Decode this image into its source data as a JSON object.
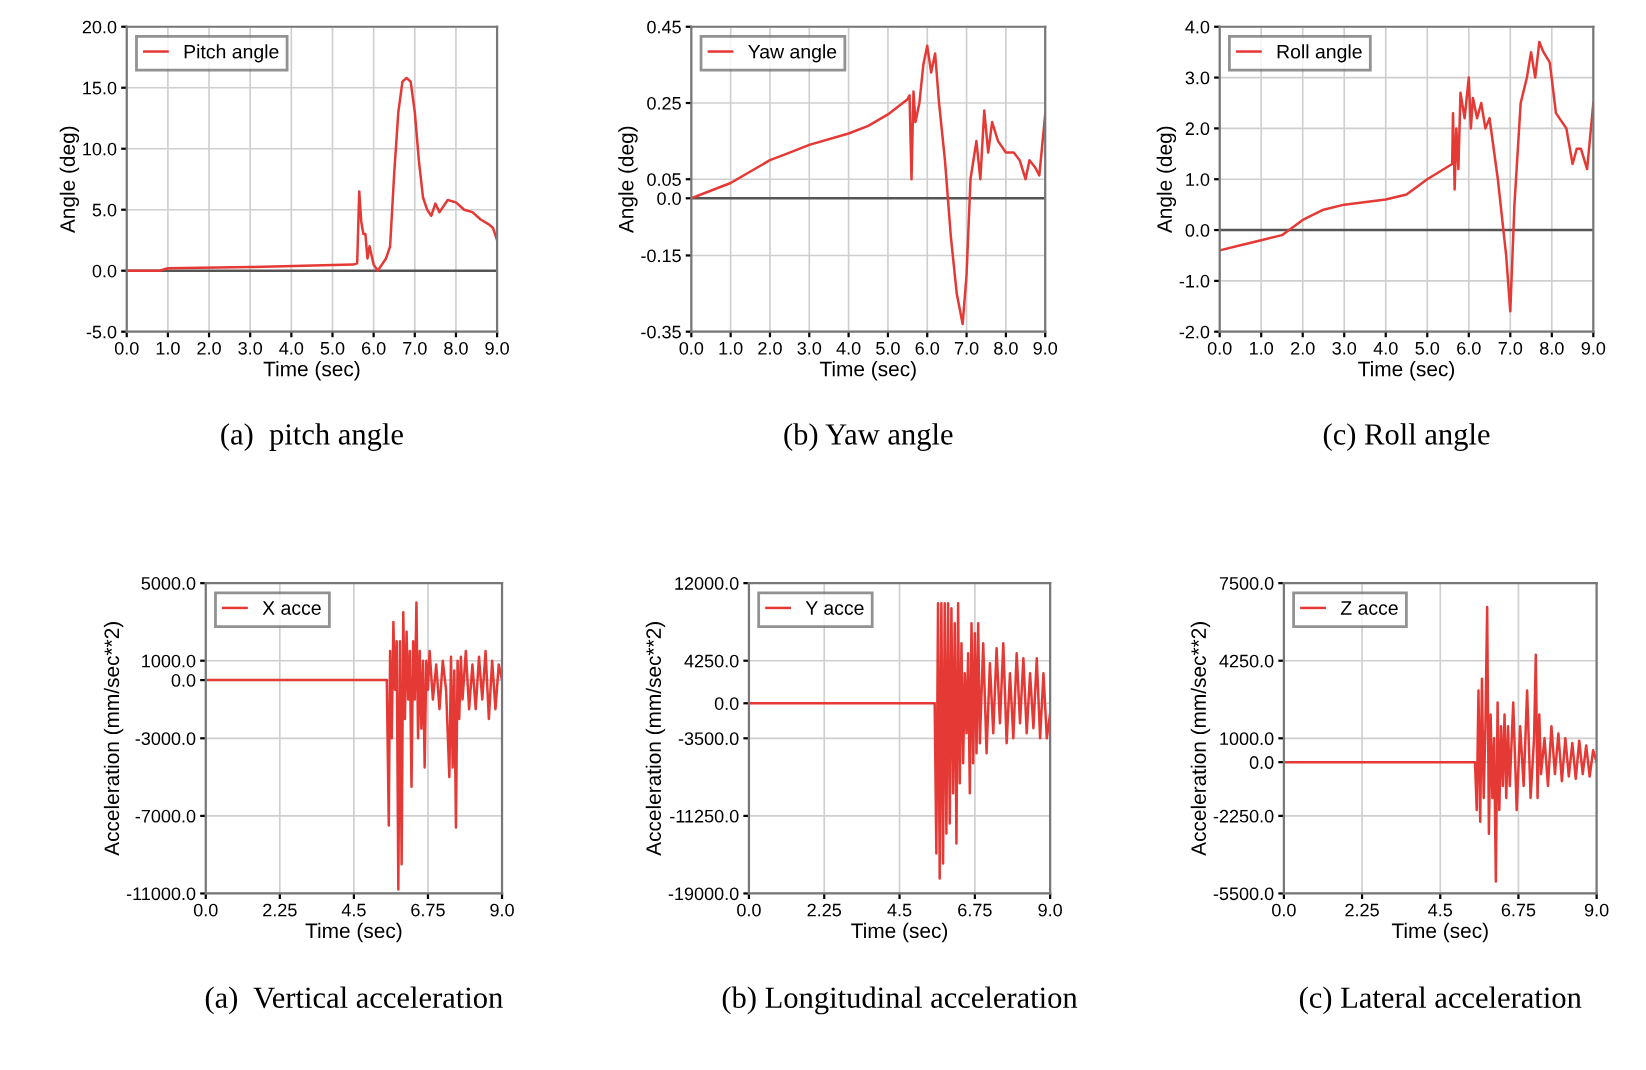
{
  "chart_data": [
    {
      "type": "line",
      "title": "(a)  pitch angle",
      "xlabel": "Time (sec)",
      "ylabel": "Angle (deg)",
      "x": [
        0,
        0.8,
        1.0,
        3.0,
        5.5,
        5.6,
        5.65,
        5.7,
        5.75,
        5.8,
        5.85,
        5.9,
        6.0,
        6.1,
        6.2,
        6.3,
        6.4,
        6.5,
        6.6,
        6.7,
        6.8,
        6.9,
        7.0,
        7.1,
        7.2,
        7.3,
        7.4,
        7.5,
        7.6,
        7.8,
        8.0,
        8.2,
        8.4,
        8.6,
        8.8,
        8.9,
        9.0
      ],
      "series": [
        {
          "name": "Pitch angle",
          "color": "#e53935",
          "values": [
            0,
            0,
            0.2,
            0.3,
            0.5,
            0.6,
            6.5,
            4.0,
            3.0,
            3.0,
            1.0,
            2.0,
            0.5,
            0.0,
            0.5,
            1.0,
            2.0,
            8.0,
            13.0,
            15.5,
            15.8,
            15.5,
            13.0,
            9.0,
            6.0,
            5.0,
            4.5,
            5.5,
            4.8,
            5.8,
            5.6,
            5.0,
            4.8,
            4.2,
            3.8,
            3.5,
            2.5
          ]
        }
      ],
      "xlim": [
        0,
        9
      ],
      "xticks": [
        {
          "value": 0,
          "label": "0.0"
        },
        {
          "value": 1,
          "label": "1.0"
        },
        {
          "value": 2,
          "label": "2.0"
        },
        {
          "value": 3,
          "label": "3.0"
        },
        {
          "value": 4,
          "label": "4.0"
        },
        {
          "value": 5,
          "label": "5.0"
        },
        {
          "value": 6,
          "label": "6.0"
        },
        {
          "value": 7,
          "label": "7.0"
        },
        {
          "value": 8,
          "label": "8.0"
        },
        {
          "value": 9,
          "label": "9.0"
        }
      ],
      "ylim": [
        -5,
        20
      ],
      "yticks": [
        {
          "value": -5,
          "label": "-5.0"
        },
        {
          "value": 0,
          "label": "0.0"
        },
        {
          "value": 5,
          "label": "5.0"
        },
        {
          "value": 10,
          "label": "10.0"
        },
        {
          "value": 15,
          "label": "15.0"
        },
        {
          "value": 20,
          "label": "20.0"
        }
      ],
      "ref_lines": [
        {
          "axis": "y",
          "value": 0,
          "color": "#555555"
        }
      ],
      "grid": true,
      "legend": "top left"
    },
    {
      "type": "line",
      "title": "(b) Yaw angle",
      "xlabel": "Time (sec)",
      "ylabel": "Angle (deg)",
      "x": [
        0,
        1.0,
        2.0,
        2.5,
        3.0,
        4.0,
        4.5,
        5.0,
        5.5,
        5.55,
        5.6,
        5.65,
        5.7,
        5.8,
        5.9,
        6.0,
        6.1,
        6.2,
        6.3,
        6.45,
        6.6,
        6.75,
        6.9,
        7.0,
        7.1,
        7.25,
        7.35,
        7.45,
        7.55,
        7.65,
        7.8,
        8.0,
        8.2,
        8.35,
        8.5,
        8.6,
        8.75,
        8.85,
        9.0
      ],
      "series": [
        {
          "name": "Yaw angle",
          "color": "#e53935",
          "values": [
            0.0,
            0.04,
            0.1,
            0.12,
            0.14,
            0.17,
            0.19,
            0.22,
            0.26,
            0.27,
            0.05,
            0.28,
            0.2,
            0.25,
            0.35,
            0.4,
            0.33,
            0.38,
            0.25,
            0.1,
            -0.1,
            -0.25,
            -0.33,
            -0.2,
            0.05,
            0.15,
            0.05,
            0.23,
            0.12,
            0.2,
            0.15,
            0.12,
            0.12,
            0.1,
            0.05,
            0.1,
            0.08,
            0.06,
            0.22
          ]
        }
      ],
      "xlim": [
        0,
        9
      ],
      "xticks": [
        {
          "value": 0,
          "label": "0.0"
        },
        {
          "value": 1,
          "label": "1.0"
        },
        {
          "value": 2,
          "label": "2.0"
        },
        {
          "value": 3,
          "label": "3.0"
        },
        {
          "value": 4,
          "label": "4.0"
        },
        {
          "value": 5,
          "label": "5.0"
        },
        {
          "value": 6,
          "label": "6.0"
        },
        {
          "value": 7,
          "label": "7.0"
        },
        {
          "value": 8,
          "label": "8.0"
        },
        {
          "value": 9,
          "label": "9.0"
        }
      ],
      "ylim": [
        -0.35,
        0.45
      ],
      "yticks": [
        -0.35,
        -0.15,
        {
          "value": 0,
          "label": "0.0"
        },
        0.05,
        0.25,
        0.45
      ],
      "ref_lines": [
        {
          "axis": "y",
          "value": 0,
          "color": "#555555"
        }
      ],
      "grid": true,
      "legend": "top left"
    },
    {
      "type": "line",
      "title": "(c) Roll angle",
      "xlabel": "Time (sec)",
      "ylabel": "Angle (deg)",
      "x": [
        0,
        0.5,
        1.0,
        1.5,
        2.0,
        2.5,
        3.0,
        4.0,
        4.5,
        5.0,
        5.6,
        5.62,
        5.66,
        5.7,
        5.75,
        5.8,
        5.9,
        6.0,
        6.05,
        6.1,
        6.2,
        6.3,
        6.4,
        6.5,
        6.7,
        6.9,
        7.0,
        7.1,
        7.25,
        7.4,
        7.5,
        7.6,
        7.7,
        7.8,
        7.95,
        8.1,
        8.35,
        8.5,
        8.6,
        8.7,
        8.85,
        9.0
      ],
      "series": [
        {
          "name": "Roll angle",
          "color": "#e53935",
          "values": [
            -0.4,
            -0.3,
            -0.2,
            -0.1,
            0.2,
            0.4,
            0.5,
            0.6,
            0.7,
            1.0,
            1.3,
            2.3,
            0.8,
            2.0,
            1.2,
            2.7,
            2.2,
            3.0,
            2.0,
            2.6,
            2.2,
            2.5,
            2.0,
            2.2,
            1.0,
            -0.5,
            -1.6,
            0.5,
            2.5,
            3.0,
            3.5,
            3.0,
            3.7,
            3.5,
            3.3,
            2.3,
            2.0,
            1.3,
            1.6,
            1.6,
            1.2,
            2.5
          ]
        }
      ],
      "xlim": [
        0,
        9
      ],
      "xticks": [
        {
          "value": 0,
          "label": "0.0"
        },
        {
          "value": 1,
          "label": "1.0"
        },
        {
          "value": 2,
          "label": "2.0"
        },
        {
          "value": 3,
          "label": "3.0"
        },
        {
          "value": 4,
          "label": "4.0"
        },
        {
          "value": 5,
          "label": "5.0"
        },
        {
          "value": 6,
          "label": "6.0"
        },
        {
          "value": 7,
          "label": "7.0"
        },
        {
          "value": 8,
          "label": "8.0"
        },
        {
          "value": 9,
          "label": "9.0"
        }
      ],
      "ylim": [
        -2,
        4
      ],
      "yticks": [
        {
          "value": -2,
          "label": "-2.0"
        },
        {
          "value": -1,
          "label": "-1.0"
        },
        {
          "value": 0,
          "label": "0.0"
        },
        {
          "value": 1,
          "label": "1.0"
        },
        {
          "value": 2,
          "label": "2.0"
        },
        {
          "value": 3,
          "label": "3.0"
        },
        {
          "value": 4,
          "label": "4.0"
        }
      ],
      "ref_lines": [
        {
          "axis": "y",
          "value": 0,
          "color": "#555555"
        }
      ],
      "grid": true,
      "legend": "top left"
    },
    {
      "type": "line",
      "title": "(a)  Vertical acceleration",
      "xlabel": "Time (sec)",
      "ylabel": "Acceleration (mm/sec**2)",
      "x": [
        0,
        5.5,
        5.56,
        5.6,
        5.65,
        5.7,
        5.75,
        5.8,
        5.85,
        5.9,
        5.95,
        6.0,
        6.05,
        6.1,
        6.15,
        6.2,
        6.25,
        6.3,
        6.35,
        6.4,
        6.45,
        6.5,
        6.55,
        6.6,
        6.65,
        6.7,
        6.75,
        6.8,
        6.9,
        7.0,
        7.1,
        7.2,
        7.3,
        7.4,
        7.45,
        7.5,
        7.55,
        7.6,
        7.65,
        7.7,
        7.75,
        7.8,
        7.9,
        8.0,
        8.1,
        8.2,
        8.3,
        8.4,
        8.5,
        8.6,
        8.7,
        8.8,
        8.9,
        9.0
      ],
      "series": [
        {
          "name": "X acce",
          "color": "#e53935",
          "values": [
            0,
            0,
            -7500,
            1500,
            -3000,
            3000,
            -500,
            2000,
            -10800,
            2000,
            -9500,
            3500,
            -2000,
            2500,
            -1000,
            1500,
            -5500,
            2000,
            -1000,
            4000,
            -3000,
            1500,
            -2500,
            1000,
            -4500,
            1000,
            -500,
            1500,
            -1000,
            800,
            -1500,
            1000,
            -500,
            -5000,
            1200,
            -4500,
            500,
            -7600,
            1000,
            -2000,
            1200,
            -1000,
            1500,
            -1500,
            800,
            -1500,
            1200,
            -1000,
            1500,
            -2000,
            1000,
            -1500,
            800,
            0
          ]
        }
      ],
      "xlim": [
        0,
        9
      ],
      "xticks": [
        {
          "value": 0,
          "label": "0.0"
        },
        2.25,
        4.5,
        6.75,
        {
          "value": 9,
          "label": "9.0"
        }
      ],
      "ylim": [
        -11000,
        5000
      ],
      "yticks": [
        {
          "value": -11000,
          "label": "-11000.0"
        },
        {
          "value": -7000,
          "label": "-7000.0"
        },
        {
          "value": -3000,
          "label": "-3000.0"
        },
        {
          "value": 0,
          "label": "0.0"
        },
        {
          "value": 1000,
          "label": "1000.0"
        },
        {
          "value": 5000,
          "label": "5000.0"
        }
      ],
      "grid": true,
      "legend": "top left"
    },
    {
      "type": "line",
      "title": "(b) Longitudinal acceleration",
      "xlabel": "Time (sec)",
      "ylabel": "Acceleration (mm/sec**2)",
      "x": [
        0,
        5.55,
        5.6,
        5.65,
        5.7,
        5.75,
        5.8,
        5.85,
        5.9,
        5.95,
        6.0,
        6.05,
        6.1,
        6.15,
        6.2,
        6.25,
        6.3,
        6.35,
        6.4,
        6.45,
        6.5,
        6.55,
        6.6,
        6.65,
        6.7,
        6.75,
        6.8,
        6.85,
        6.9,
        7.0,
        7.1,
        7.2,
        7.3,
        7.4,
        7.5,
        7.6,
        7.7,
        7.8,
        7.9,
        8.0,
        8.1,
        8.2,
        8.3,
        8.4,
        8.5,
        8.6,
        8.7,
        8.8,
        8.9,
        9.0
      ],
      "series": [
        {
          "name": "Y acce",
          "color": "#e53935",
          "values": [
            0,
            0,
            -15000,
            10000,
            -17500,
            10000,
            -16000,
            10000,
            -13000,
            10000,
            -12000,
            9500,
            -9000,
            8000,
            -14000,
            10000,
            -8000,
            6000,
            -6000,
            3000,
            -3000,
            5000,
            -9000,
            8000,
            -6000,
            7000,
            -5000,
            8000,
            -4000,
            6000,
            -5000,
            4000,
            -3000,
            5500,
            -2000,
            6000,
            -4000,
            3000,
            -3500,
            5000,
            -2000,
            4500,
            -3000,
            3000,
            -2500,
            4500,
            -3500,
            3000,
            -3500,
            -1000
          ]
        }
      ],
      "xlim": [
        0,
        9
      ],
      "xticks": [
        {
          "value": 0,
          "label": "0.0"
        },
        2.25,
        4.5,
        6.75,
        {
          "value": 9,
          "label": "9.0"
        }
      ],
      "ylim": [
        -19000,
        12000
      ],
      "yticks": [
        {
          "value": -19000,
          "label": "-19000.0"
        },
        {
          "value": -11250,
          "label": "-11250.0"
        },
        {
          "value": -3500,
          "label": "-3500.0"
        },
        {
          "value": 0,
          "label": "0.0"
        },
        {
          "value": 4250,
          "label": "4250.0"
        },
        {
          "value": 12000,
          "label": "12000.0"
        }
      ],
      "grid": true,
      "legend": "top left"
    },
    {
      "type": "line",
      "title": "(c) Lateral acceleration",
      "xlabel": "Time (sec)",
      "ylabel": "Acceleration (mm/sec**2)",
      "x": [
        0,
        5.5,
        5.55,
        5.6,
        5.65,
        5.7,
        5.75,
        5.8,
        5.85,
        5.9,
        5.95,
        6.0,
        6.05,
        6.1,
        6.15,
        6.2,
        6.25,
        6.3,
        6.35,
        6.4,
        6.45,
        6.5,
        6.6,
        6.7,
        6.8,
        6.9,
        7.0,
        7.1,
        7.2,
        7.25,
        7.3,
        7.35,
        7.4,
        7.5,
        7.6,
        7.7,
        7.8,
        7.9,
        8.0,
        8.1,
        8.2,
        8.3,
        8.4,
        8.5,
        8.6,
        8.7,
        8.8,
        8.9,
        9.0
      ],
      "series": [
        {
          "name": "Z acce",
          "color": "#e53935",
          "values": [
            0,
            0,
            -2000,
            3000,
            -2500,
            3500,
            -1500,
            1500,
            6500,
            -3000,
            2000,
            -1500,
            1000,
            -5000,
            2500,
            -2000,
            1500,
            -1000,
            2000,
            -1500,
            1500,
            -1000,
            2500,
            -2000,
            1500,
            -1000,
            3000,
            -1500,
            1000,
            4500,
            -1500,
            2000,
            -500,
            1000,
            -1000,
            1500,
            -500,
            1200,
            -800,
            1000,
            -600,
            800,
            -700,
            900,
            -500,
            700,
            -600,
            500,
            0
          ]
        }
      ],
      "xlim": [
        0,
        9
      ],
      "xticks": [
        {
          "value": 0,
          "label": "0.0"
        },
        2.25,
        4.5,
        6.75,
        {
          "value": 9,
          "label": "9.0"
        }
      ],
      "ylim": [
        -5500,
        7500
      ],
      "yticks": [
        {
          "value": -5500,
          "label": "-5500.0"
        },
        {
          "value": -2250,
          "label": "-2250.0"
        },
        {
          "value": 0,
          "label": "0.0"
        },
        {
          "value": 1000,
          "label": "1000.0"
        },
        {
          "value": 4250,
          "label": "4250.0"
        },
        {
          "value": 7500,
          "label": "7500.0"
        }
      ],
      "grid": true,
      "legend": "top left"
    }
  ]
}
